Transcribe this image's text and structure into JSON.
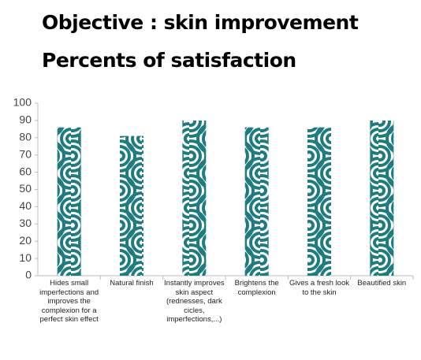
{
  "chart_data": {
    "type": "bar",
    "title": "Objective : skin improvement",
    "subtitle": "Percents of satisfaction",
    "categories": [
      "Hides small imperfections and improves the complexion for a perfect skin effect",
      "Natural finish",
      "Instantly improves skin aspect (rednesses, dark cicles, imperfections,...)",
      "Brightens the complexion",
      "Gives a fresh look to the skin",
      "Beautified skin"
    ],
    "values": [
      86,
      81,
      90,
      86,
      86,
      90
    ],
    "color": "#1e7b80",
    "ylim": [
      0,
      100
    ],
    "yticks": [
      0,
      10,
      20,
      30,
      40,
      50,
      60,
      70,
      80,
      90,
      100
    ]
  }
}
